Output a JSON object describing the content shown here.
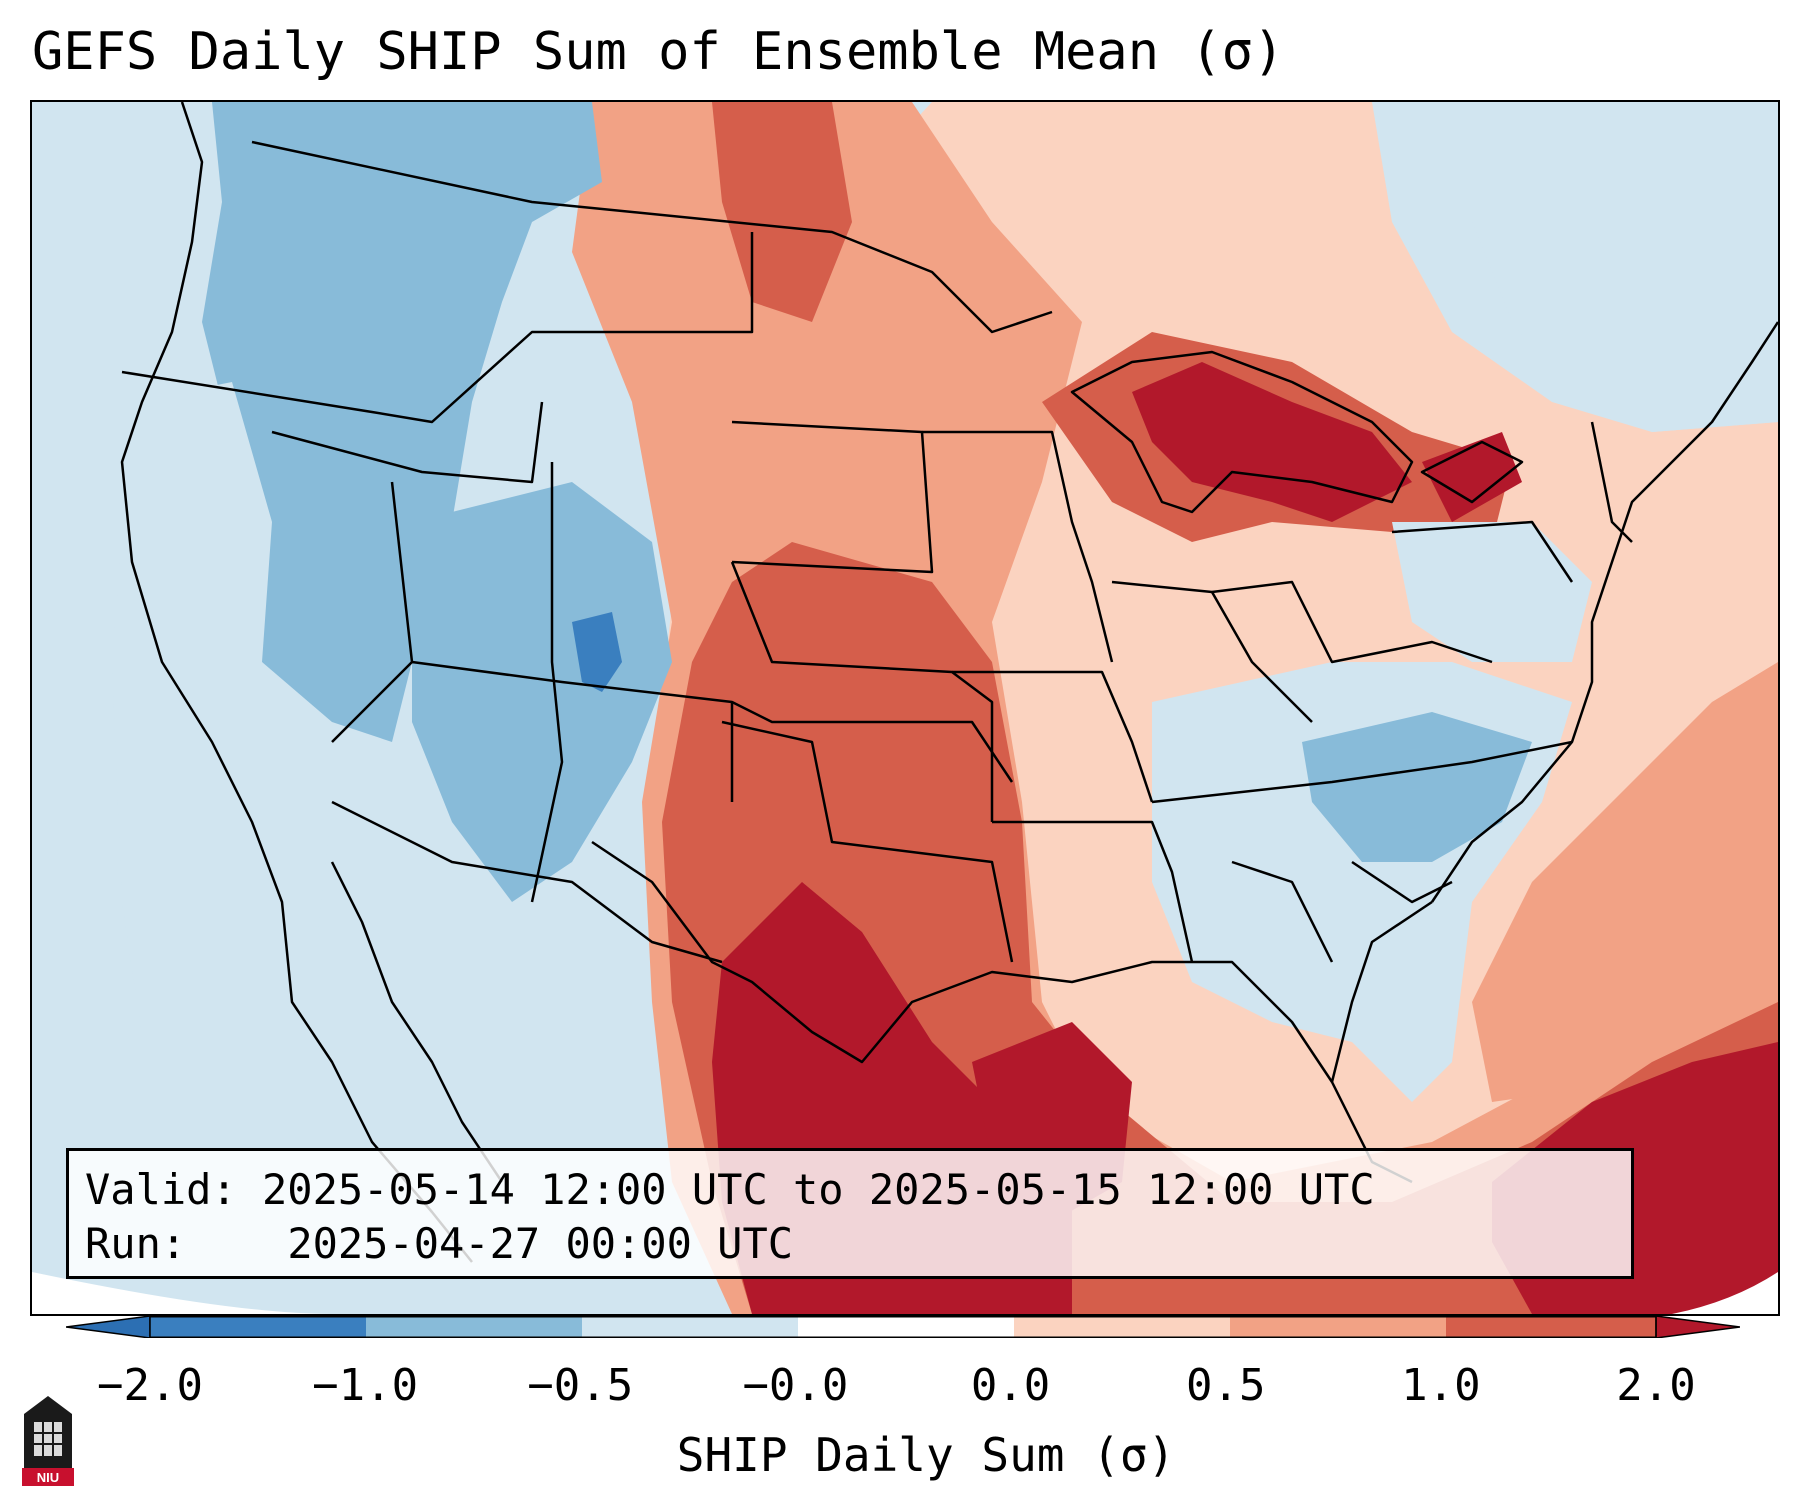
{
  "title": "GEFS Daily SHIP Sum of Ensemble Mean (σ)",
  "info": {
    "valid_label": "Valid:",
    "valid_value": "2025-05-14 12:00 UTC to 2025-05-15 12:00 UTC",
    "run_label": "Run:",
    "run_value": "2025-04-27 00:00 UTC"
  },
  "colorbar": {
    "label": "SHIP Daily Sum (σ)",
    "ticks": [
      "−2.0",
      "−1.0",
      "−0.5",
      "−0.0",
      "0.0",
      "0.5",
      "1.0",
      "2.0"
    ],
    "colors": [
      "#3a7fbf",
      "#88bbd9",
      "#d1e5f0",
      "#ffffff",
      "#fbd3c0",
      "#f2a285",
      "#d55e4b",
      "#b2182b"
    ],
    "extend": "both"
  },
  "legend_colors": {
    "very_low": "#3a7fbf",
    "low": "#88bbd9",
    "slightly_low": "#d1e5f0",
    "slightly_high": "#fbd3c0",
    "high": "#f2a285",
    "very_high": "#d55e4b",
    "extreme": "#b2182b"
  },
  "logo": {
    "text": "NIU",
    "icon": "niu-logo-icon"
  }
}
